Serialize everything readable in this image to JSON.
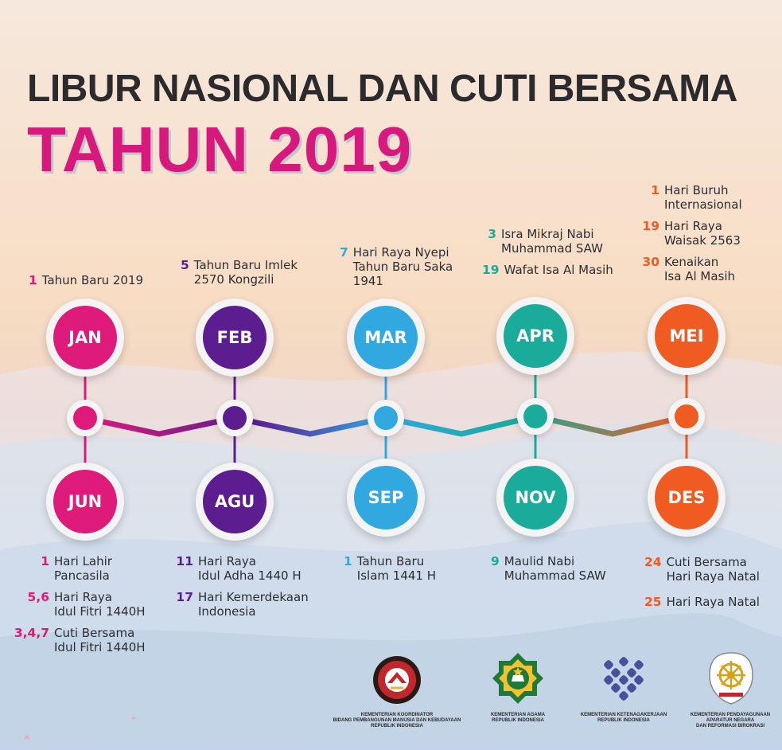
{
  "title": {
    "line1": "LIBUR NASIONAL DAN CUTI BERSAMA",
    "line2": "TAHUN 2019"
  },
  "colors": {
    "jan": "#de1a7b",
    "feb": "#5b1d8f",
    "mar": "#32a8e0",
    "apr": "#1aab9a",
    "mei": "#ef5b21",
    "jun": "#de1a7b",
    "agu": "#5b1d8f",
    "sep": "#32a8e0",
    "nov": "#1aab9a",
    "des": "#ef5b21",
    "text": "#2d2d33",
    "title_accent": "#d7197e"
  },
  "months_top": [
    {
      "label": "JAN",
      "color": "#de1a7b",
      "events": [
        {
          "date": "1",
          "text": "Tahun Baru 2019"
        }
      ]
    },
    {
      "label": "FEB",
      "color": "#5b1d8f",
      "events": [
        {
          "date": "5",
          "text": "Tahun Baru Imlek\n2570 Kongzili"
        }
      ]
    },
    {
      "label": "MAR",
      "color": "#32a8e0",
      "events": [
        {
          "date": "7",
          "text": "Hari Raya Nyepi\nTahun Baru Saka\n1941"
        }
      ]
    },
    {
      "label": "APR",
      "color": "#1aab9a",
      "events": [
        {
          "date": "3",
          "text": "Isra Mikraj Nabi\nMuhammad SAW"
        },
        {
          "date": "19",
          "text": "Wafat Isa Al Masih"
        }
      ]
    },
    {
      "label": "MEI",
      "color": "#ef5b21",
      "events": [
        {
          "date": "1",
          "text": "Hari Buruh\nInternasional"
        },
        {
          "date": "19",
          "text": "Hari Raya\nWaisak 2563"
        },
        {
          "date": "30",
          "text": "Kenaikan\nIsa Al Masih"
        }
      ]
    }
  ],
  "months_bottom": [
    {
      "label": "JUN",
      "color": "#de1a7b",
      "events": [
        {
          "date": "1",
          "text": "Hari Lahir\nPancasila"
        },
        {
          "date": "5,6",
          "text": "Hari Raya\nIdul Fitri 1440H"
        },
        {
          "date": "3,4,7",
          "text": "Cuti Bersama\nIdul Fitri 1440H"
        }
      ]
    },
    {
      "label": "AGU",
      "color": "#5b1d8f",
      "events": [
        {
          "date": "11",
          "text": "Hari Raya\nIdul Adha 1440 H"
        },
        {
          "date": "17",
          "text": "Hari Kemerdekaan\nIndonesia"
        }
      ]
    },
    {
      "label": "SEP",
      "color": "#32a8e0",
      "events": [
        {
          "date": "1",
          "text": "Tahun Baru\nIslam 1441 H"
        }
      ]
    },
    {
      "label": "NOV",
      "color": "#1aab9a",
      "events": [
        {
          "date": "9",
          "text": "Maulid Nabi\nMuhammad SAW"
        }
      ]
    },
    {
      "label": "DES",
      "color": "#ef5b21",
      "events": [
        {
          "date": "24",
          "text": "Cuti Bersama\nHari Raya Natal"
        },
        {
          "date": "25",
          "text": "Hari Raya Natal"
        }
      ]
    }
  ],
  "logos": [
    {
      "icon": "kemenko-pmk-emblem-icon",
      "caption": "KEMENTERIAN KOORDINATOR\nBIDANG PEMBANGUNAN MANUSIA DAN KEBUDAYAAN\nREPUBLIK INDONESIA"
    },
    {
      "icon": "kemenag-emblem-icon",
      "caption": "KEMENTERIAN AGAMA\nREPUBLIK INDONESIA"
    },
    {
      "icon": "kemnaker-emblem-icon",
      "caption": "KEMENTERIAN KETENAGAKERJAAN\nREPUBLIK INDONESIA"
    },
    {
      "icon": "kemenpan-rb-emblem-icon",
      "caption": "KEMENTERIAN PENDAYAGUNAAN\nAPARATUR NEGARA\nDAN REFORMASI BIROKRASI"
    }
  ]
}
